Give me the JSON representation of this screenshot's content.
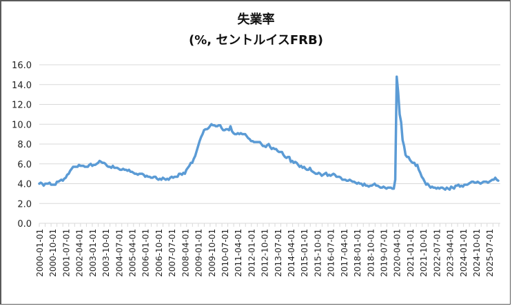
{
  "chart_data": {
    "type": "line",
    "title": "失業率",
    "subtitle": "(%, セントルイスFRB)",
    "xlabel": "",
    "ylabel": "",
    "ylim": [
      0,
      16
    ],
    "yticks": [
      "0.0",
      "2.0",
      "4.0",
      "6.0",
      "8.0",
      "10.0",
      "12.0",
      "14.0",
      "16.0"
    ],
    "grid": true,
    "legend": null,
    "x_tick_labels": [
      "2000-01-01",
      "2000-10-01",
      "2001-07-01",
      "2002-04-01",
      "2003-01-01",
      "2003-10-01",
      "2004-07-01",
      "2005-04-01",
      "2006-01-01",
      "2006-10-01",
      "2007-07-01",
      "2008-04-01",
      "2009-01-01",
      "2009-10-01",
      "2010-07-01",
      "2011-04-01",
      "2012-01-01",
      "2012-10-01",
      "2013-07-01",
      "2014-04-01",
      "2015-01-01",
      "2015-10-01",
      "2016-07-01",
      "2017-04-01",
      "2018-01-01",
      "2018-10-01",
      "2019-07-01",
      "2020-04-01",
      "2021-01-01",
      "2021-10-01",
      "2022-07-01",
      "2023-04-01",
      "2024-01-01",
      "2024-10-01",
      "2025-07-01"
    ],
    "x_start": "2000-01-01",
    "frequency": "monthly",
    "series": [
      {
        "name": "失業率",
        "color": "#5b9bd5",
        "values": [
          4.0,
          4.1,
          4.0,
          3.8,
          4.0,
          4.0,
          4.0,
          4.1,
          3.9,
          3.9,
          3.9,
          3.9,
          4.2,
          4.2,
          4.3,
          4.4,
          4.3,
          4.5,
          4.6,
          4.9,
          5.0,
          5.3,
          5.5,
          5.7,
          5.7,
          5.7,
          5.7,
          5.9,
          5.8,
          5.8,
          5.8,
          5.7,
          5.7,
          5.7,
          5.9,
          6.0,
          5.8,
          5.9,
          5.9,
          6.0,
          6.1,
          6.3,
          6.2,
          6.1,
          6.1,
          6.0,
          5.8,
          5.7,
          5.7,
          5.6,
          5.8,
          5.6,
          5.6,
          5.6,
          5.5,
          5.4,
          5.4,
          5.5,
          5.4,
          5.4,
          5.3,
          5.4,
          5.2,
          5.2,
          5.1,
          5.0,
          5.0,
          4.9,
          5.0,
          5.0,
          5.0,
          4.9,
          4.7,
          4.8,
          4.7,
          4.7,
          4.6,
          4.6,
          4.7,
          4.7,
          4.5,
          4.4,
          4.5,
          4.4,
          4.6,
          4.5,
          4.4,
          4.5,
          4.4,
          4.6,
          4.7,
          4.6,
          4.7,
          4.7,
          4.7,
          5.0,
          5.0,
          4.9,
          5.1,
          5.0,
          5.4,
          5.6,
          5.8,
          6.1,
          6.1,
          6.5,
          6.8,
          7.3,
          7.8,
          8.3,
          8.7,
          9.0,
          9.4,
          9.5,
          9.5,
          9.6,
          9.8,
          10.0,
          9.9,
          9.9,
          9.8,
          9.8,
          9.9,
          9.9,
          9.6,
          9.4,
          9.4,
          9.5,
          9.5,
          9.4,
          9.8,
          9.3,
          9.1,
          9.0,
          9.0,
          9.1,
          9.0,
          9.1,
          9.0,
          9.0,
          9.0,
          8.8,
          8.6,
          8.5,
          8.3,
          8.3,
          8.2,
          8.2,
          8.2,
          8.2,
          8.2,
          8.0,
          7.8,
          7.8,
          7.7,
          7.9,
          8.0,
          7.7,
          7.5,
          7.6,
          7.5,
          7.5,
          7.3,
          7.2,
          7.2,
          7.2,
          6.9,
          6.7,
          6.6,
          6.7,
          6.7,
          6.2,
          6.3,
          6.1,
          6.2,
          6.1,
          5.9,
          5.7,
          5.8,
          5.6,
          5.7,
          5.5,
          5.4,
          5.4,
          5.6,
          5.3,
          5.2,
          5.1,
          5.0,
          5.0,
          5.1,
          5.0,
          4.8,
          4.9,
          5.0,
          5.1,
          4.8,
          4.9,
          4.8,
          4.9,
          5.0,
          4.9,
          4.7,
          4.7,
          4.7,
          4.6,
          4.4,
          4.4,
          4.4,
          4.3,
          4.3,
          4.4,
          4.3,
          4.2,
          4.2,
          4.1,
          4.0,
          4.1,
          4.0,
          4.0,
          3.8,
          4.0,
          3.8,
          3.8,
          3.7,
          3.8,
          3.8,
          3.9,
          4.0,
          3.8,
          3.8,
          3.7,
          3.6,
          3.6,
          3.7,
          3.6,
          3.5,
          3.6,
          3.6,
          3.6,
          3.5,
          3.5,
          4.4,
          14.8,
          13.2,
          11.0,
          10.2,
          8.4,
          7.8,
          6.9,
          6.7,
          6.7,
          6.4,
          6.2,
          6.1,
          6.1,
          5.8,
          5.9,
          5.4,
          5.1,
          4.7,
          4.5,
          4.2,
          3.9,
          4.0,
          3.8,
          3.6,
          3.7,
          3.6,
          3.6,
          3.5,
          3.6,
          3.5,
          3.6,
          3.6,
          3.5,
          3.4,
          3.6,
          3.5,
          3.4,
          3.7,
          3.6,
          3.5,
          3.8,
          3.8,
          3.9,
          3.7,
          3.8,
          3.7,
          3.9,
          3.9,
          3.9,
          4.0,
          4.1,
          4.2,
          4.2,
          4.1,
          4.1,
          4.2,
          4.1,
          4.0,
          4.1,
          4.2,
          4.2,
          4.2,
          4.1,
          4.2,
          4.3,
          4.4,
          4.4,
          4.6,
          4.4,
          4.3
        ]
      }
    ]
  }
}
